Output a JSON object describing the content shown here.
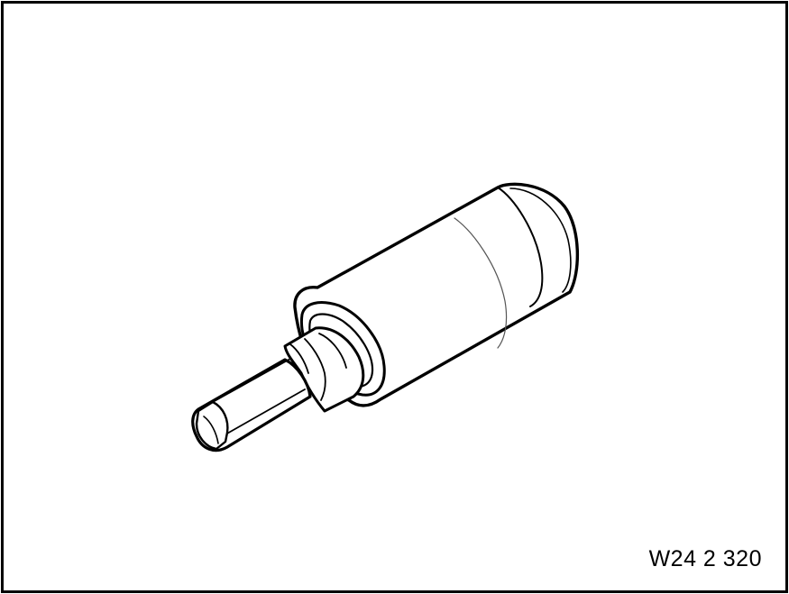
{
  "figure": {
    "reference_code": "W24 2 320",
    "subject": "socket-with-hex-bit",
    "line_color": "#000000",
    "background_color": "#ffffff"
  }
}
